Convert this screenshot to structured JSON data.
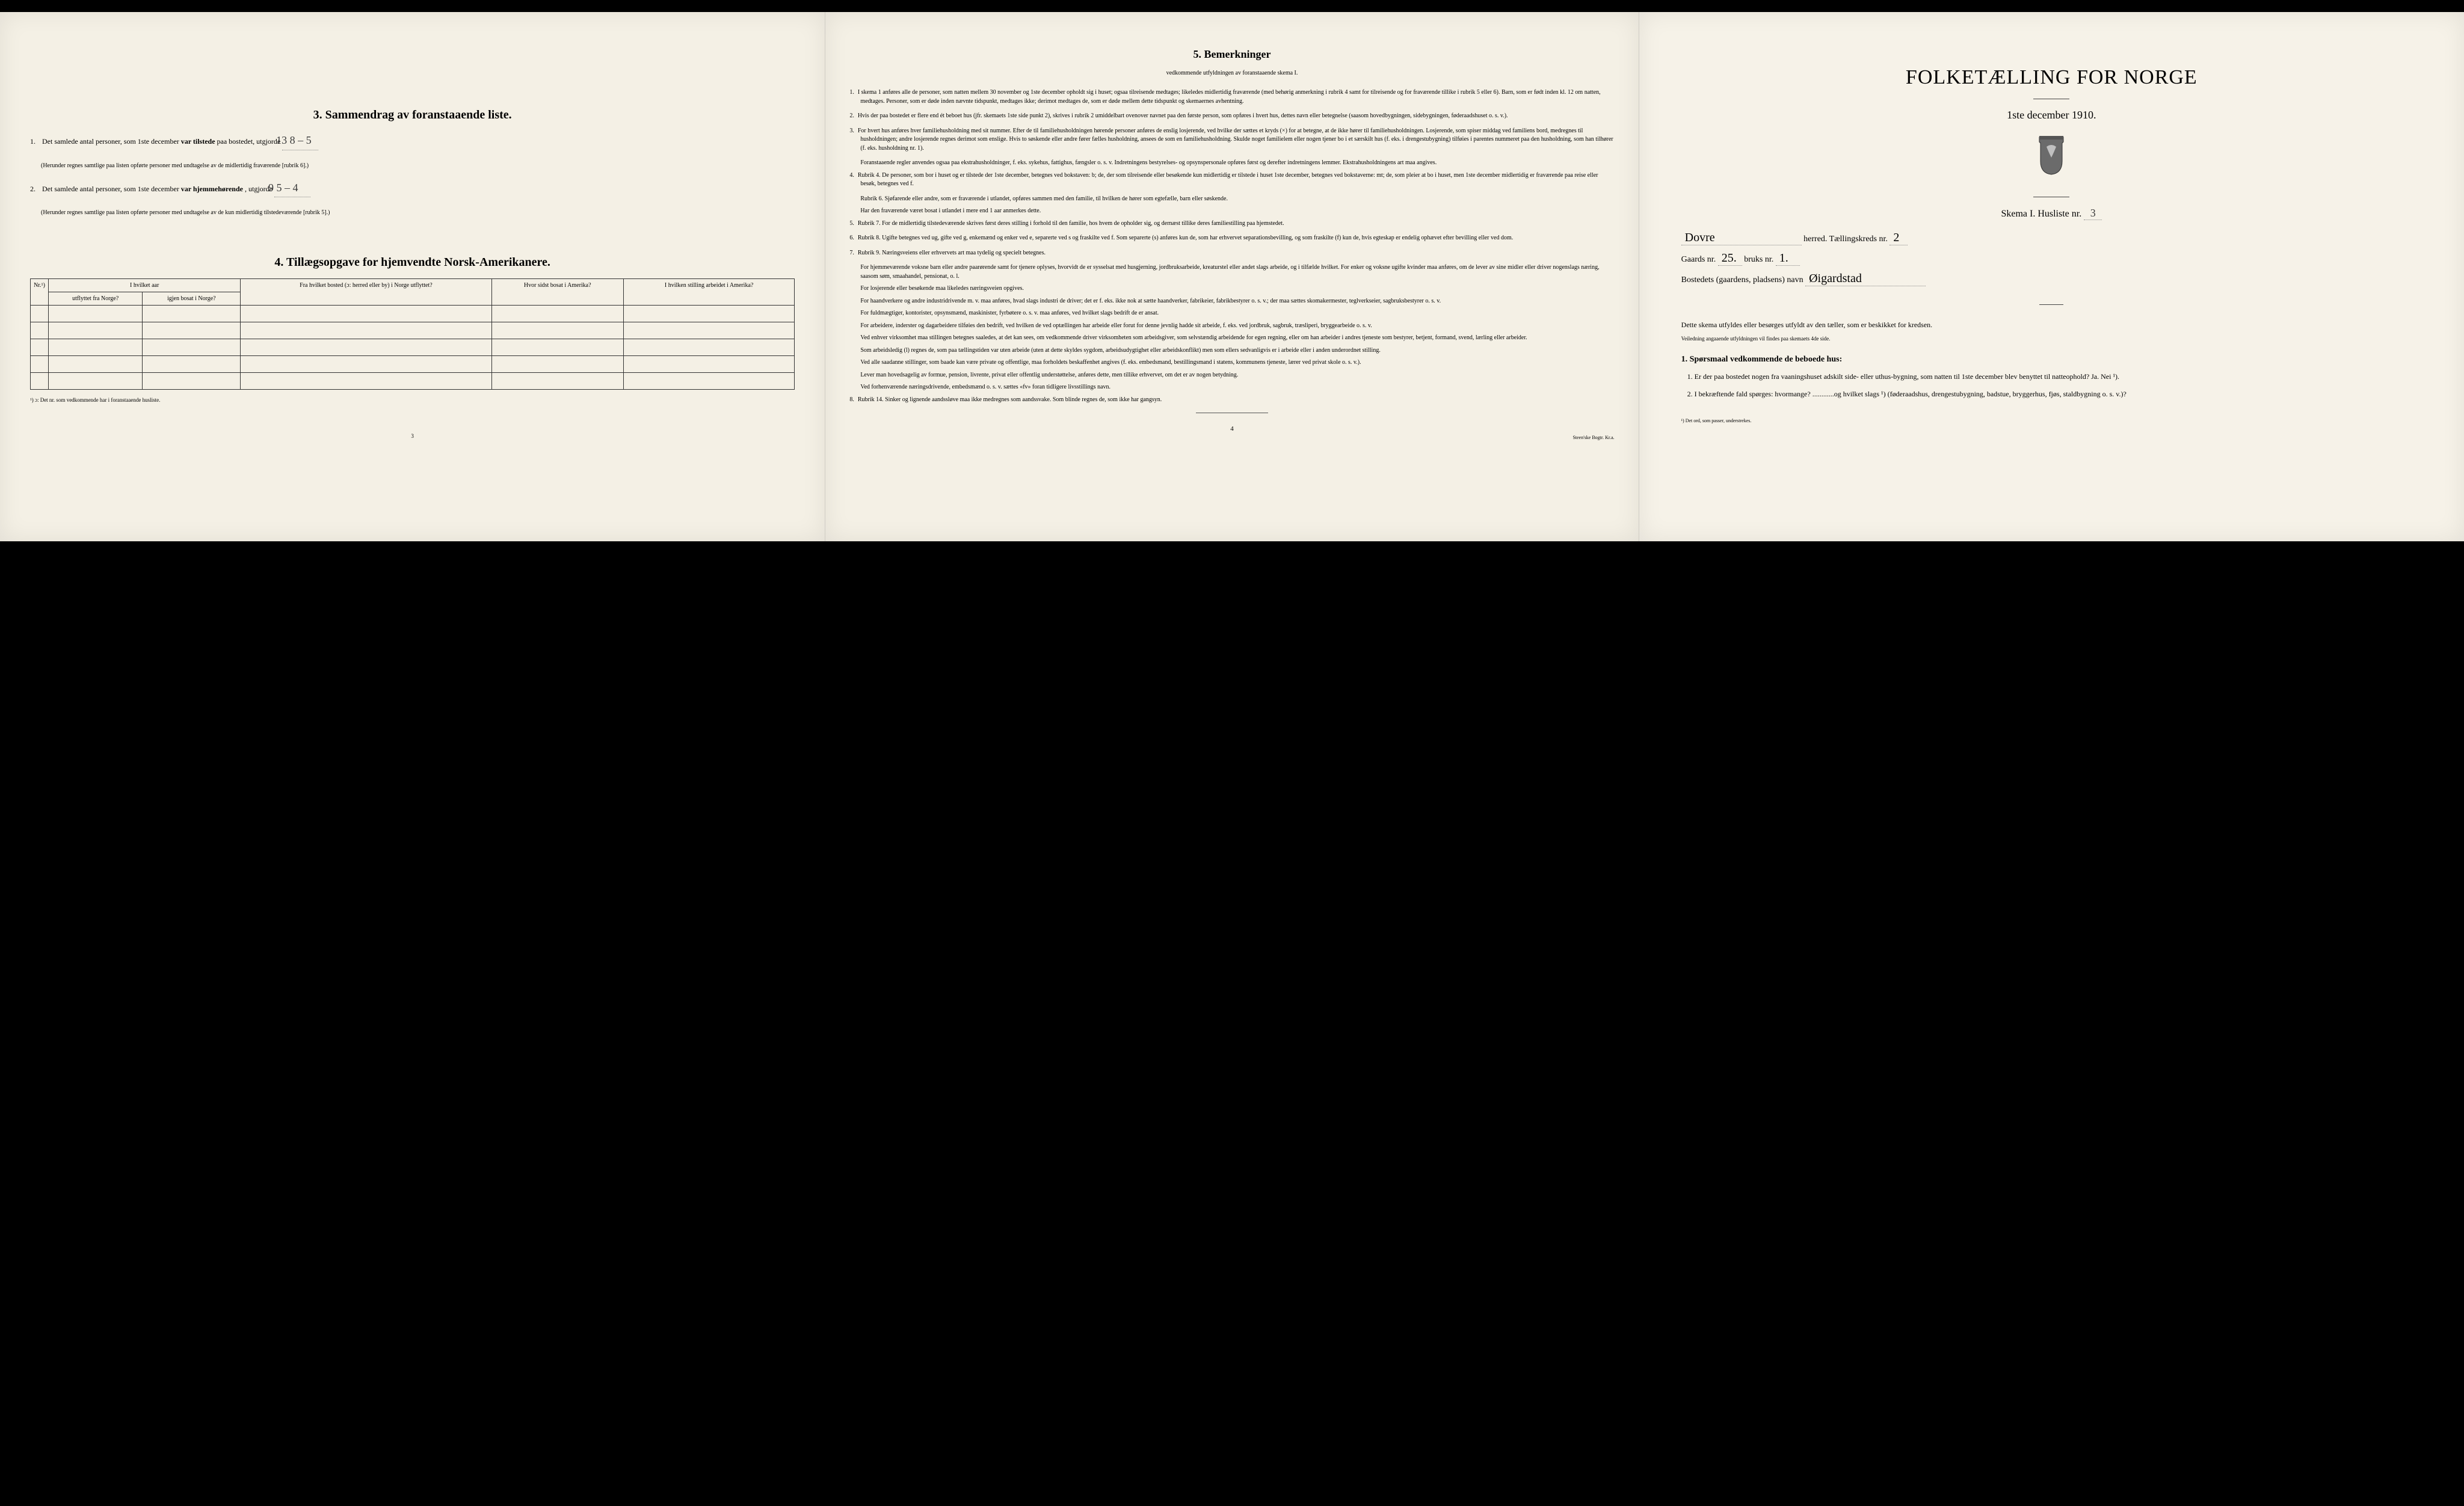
{
  "page1": {
    "section3_title": "3.   Sammendrag av foranstaaende liste.",
    "item1_prefix": "1.",
    "item1_text_a": "Det samlede antal personer, som 1ste december",
    "item1_bold": " var tilstede ",
    "item1_text_b": "paa bostedet, utgjorde",
    "item1_handwritten": "13   8 – 5",
    "item1_note": "(Herunder regnes samtlige paa listen opførte personer med undtagelse av de midlertidig fraværende [rubrik 6].)",
    "item2_prefix": "2.",
    "item2_text_a": "Det samlede antal personer, som 1ste december",
    "item2_bold": " var hjemmehørende",
    "item2_text_b": ", utgjorde",
    "item2_handwritten": "9      5 – 4",
    "item2_note": "(Herunder regnes samtlige paa listen opførte personer med undtagelse av de kun midlertidig tilstedeværende [rubrik 5].)",
    "section4_title": "4.  Tillægsopgave for hjemvendte Norsk-Amerikanere.",
    "th_nr": "Nr.¹)",
    "th_group": "I hvilket aar",
    "th_utflyttet": "utflyttet fra Norge?",
    "th_igjen": "igjen bosat i Norge?",
    "th_fra": "Fra hvilket bosted (ɔ: herred eller by) i Norge utflyttet?",
    "th_hvor": "Hvor sidst bosat i Amerika?",
    "th_stilling": "I hvilken stilling arbeidet i Amerika?",
    "footnote": "¹) ɔ: Det nr. som vedkommende har i foranstaaende husliste.",
    "pagenum": "3"
  },
  "page2": {
    "section5_title": "5.   Bemerkninger",
    "section5_sub": "vedkommende utfyldningen av foranstaaende skema I.",
    "items": [
      {
        "n": "1.",
        "t": "I skema 1 anføres alle de personer, som natten mellem 30 november og 1ste december opholdt sig i huset; ogsaa tilreisende medtages; likeledes midlertidig fraværende (med behørig anmerkning i rubrik 4 samt for tilreisende og for fraværende tillike i rubrik 5 eller 6). Barn, som er født inden kl. 12 om natten, medtages. Personer, som er døde inden nævnte tidspunkt, medtages ikke; derimot medtages de, som er døde mellem dette tidspunkt og skemaernes avhentning."
      },
      {
        "n": "2.",
        "t": "Hvis der paa bostedet er flere end ét beboet hus (jfr. skemaets 1ste side punkt 2), skrives i rubrik 2 umiddelbart ovenover navnet paa den første person, som opføres i hvert hus, dettes navn eller betegnelse (saasom hovedbygningen, sidebygningen, føderaadshuset o. s. v.)."
      },
      {
        "n": "3.",
        "t": "For hvert hus anføres hver familiehusholdning med sit nummer. Efter de til familiehusholdningen hørende personer anføres de enslig losjerende, ved hvilke der sættes et kryds (×) for at betegne, at de ikke hører til familiehusholdningen. Losjerende, som spiser middag ved familiens bord, medregnes til husholdningen; andre losjerende regnes derimot som enslige. Hvis to søskende eller andre fører fælles husholdning, ansees de som en familiehusholdning. Skulde noget familielem eller nogen tjener bo i et særskilt hus (f. eks. i drengestubygning) tilføies i parentes nummeret paa den husholdning, som han tilhører (f. eks. husholdning nr. 1)."
      },
      {
        "n": "",
        "t": "Foranstaaende regler anvendes ogsaa paa ekstrahusholdninger, f. eks. sykehus, fattighus, fængsler o. s. v. Indretningens bestyrelses- og opsynspersonale opføres først og derefter indretningens lemmer. Ekstrahusholdningens art maa angives."
      },
      {
        "n": "4.",
        "t": "Rubrik 4. De personer, som bor i huset og er tilstede der 1ste december, betegnes ved bokstaven: b; de, der som tilreisende eller besøkende kun midlertidig er tilstede i huset 1ste december, betegnes ved bokstaverne: mt; de, som pleier at bo i huset, men 1ste december midlertidig er fraværende paa reise eller besøk, betegnes ved f."
      },
      {
        "n": "",
        "t": "Rubrik 6. Sjøfarende eller andre, som er fraværende i utlandet, opføres sammen med den familie, til hvilken de hører som egtefælle, barn eller søskende."
      },
      {
        "n": "",
        "t": "Har den fraværende været bosat i utlandet i mere end 1 aar anmerkes dette."
      },
      {
        "n": "5.",
        "t": "Rubrik 7. For de midlertidig tilstedeværende skrives først deres stilling i forhold til den familie, hos hvem de opholder sig, og dernæst tillike deres familiestilling paa hjemstedet."
      },
      {
        "n": "6.",
        "t": "Rubrik 8. Ugifte betegnes ved ug, gifte ved g, enkemænd og enker ved e, separerte ved s og fraskilte ved f. Som separerte (s) anføres kun de, som har erhvervet separationsbevilling, og som fraskilte (f) kun de, hvis egteskap er endelig ophævet efter bevilling eller ved dom."
      },
      {
        "n": "7.",
        "t": "Rubrik 9. Næringsveiens eller erhvervets art maa tydelig og specielt betegnes."
      },
      {
        "n": "",
        "t": "For hjemmeværende voksne barn eller andre paarørende samt for tjenere oplyses, hvorvidt de er sysselsat med husgjerning, jordbruksarbeide, kreaturstel eller andet slags arbeide, og i tilfælde hvilket. For enker og voksne ugifte kvinder maa anføres, om de lever av sine midler eller driver nogenslags næring, saasom søm, smaahandel, pensionat, o. l."
      },
      {
        "n": "",
        "t": "For losjerende eller besøkende maa likeledes næringsveien opgives."
      },
      {
        "n": "",
        "t": "For haandverkere og andre industridrivende m. v. maa anføres, hvad slags industri de driver; det er f. eks. ikke nok at sætte haandverker, fabrikeier, fabrikbestyrer o. s. v.; der maa sættes skomakermester, teglverkseier, sagbruksbestyrer o. s. v."
      },
      {
        "n": "",
        "t": "For fuldmægtiger, kontorister, opsynsmænd, maskinister, fyrbøtere o. s. v. maa anføres, ved hvilket slags bedrift de er ansat."
      },
      {
        "n": "",
        "t": "For arbeidere, inderster og dagarbeidere tilføies den bedrift, ved hvilken de ved optællingen har arbeide eller forut for denne jevnlig hadde sit arbeide, f. eks. ved jordbruk, sagbruk, træsliperi, bryggearbeide o. s. v."
      },
      {
        "n": "",
        "t": "Ved enhver virksomhet maa stillingen betegnes saaledes, at det kan sees, om vedkommende driver virksomheten som arbeidsgiver, som selvstændig arbeidende for egen regning, eller om han arbeider i andres tjeneste som bestyrer, betjent, formand, svend, lærling eller arbeider."
      },
      {
        "n": "",
        "t": "Som arbeidsledig (l) regnes de, som paa tællingstiden var uten arbeide (uten at dette skyldes sygdom, arbeidsudygtighet eller arbeidskonflikt) men som ellers sedvanligvis er i arbeide eller i anden underordnet stilling."
      },
      {
        "n": "",
        "t": "Ved alle saadanne stillinger, som baade kan være private og offentlige, maa forholdets beskaffenhet angives (f. eks. embedsmand, bestillingsmand i statens, kommunens tjeneste, lærer ved privat skole o. s. v.)."
      },
      {
        "n": "",
        "t": "Lever man hovedsagelig av formue, pension, livrente, privat eller offentlig understøttelse, anføres dette, men tillike erhvervet, om det er av nogen betydning."
      },
      {
        "n": "",
        "t": "Ved forhenværende næringsdrivende, embedsmænd o. s. v. sættes «fv» foran tidligere livsstillings navn."
      },
      {
        "n": "8.",
        "t": "Rubrik 14. Sinker og lignende aandssløve maa ikke medregnes som aandssvake. Som blinde regnes de, som ikke har gangsyn."
      }
    ],
    "pagenum": "4",
    "printer": "Steen'ske Bogtr.  Kr.a."
  },
  "page3": {
    "big_title": "FOLKETÆLLING FOR NORGE",
    "date_line": "1ste december 1910.",
    "skema_label": "Skema I.    Husliste nr.",
    "skema_hw": "3",
    "herred_hw": "Dovre",
    "herred_label": "herred.    Tællingskreds nr.",
    "kreds_hw": "2",
    "gaard_label_a": "Gaards nr.",
    "gaard_hw_a": "25.",
    "gaard_label_b": "bruks nr.",
    "gaard_hw_b": "1.",
    "bosted_label": "Bostedets (gaardens, pladsens) navn",
    "bosted_hw": "Øigardstad",
    "instr": "Dette skema utfyldes eller besørges utfyldt av den tæller, som er beskikket for kredsen.",
    "instr_small": "Veiledning angaaende utfyldningen vil findes paa skemaets 4de side.",
    "q_head": "1. Spørsmaal vedkommende de beboede hus:",
    "q1_n": "1.",
    "q1": "Er der paa bostedet nogen fra vaaningshuset adskilt side- eller uthus-bygning, som natten til 1ste december blev benyttet til natteophold?  Ja.   Nei ¹).",
    "q2_n": "2.",
    "q2": "I bekræftende fald spørges: hvormange? ............og hvilket slags ¹) (føderaadshus, drengestubygning, badstue, bryggerhus, fjøs, staldbygning o. s. v.)?",
    "foot": "¹) Det ord, som passer, understrekes."
  }
}
